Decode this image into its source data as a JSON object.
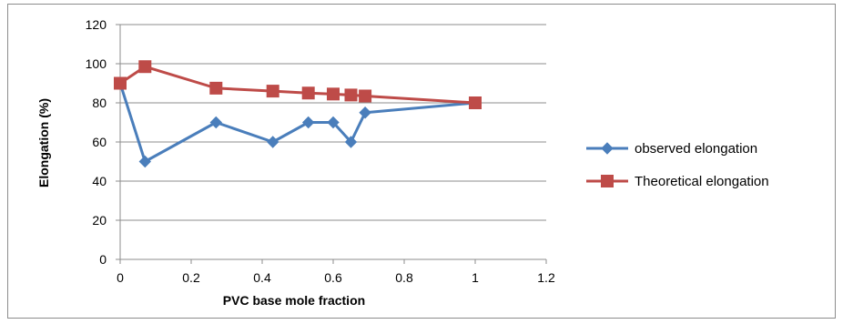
{
  "chart_data": {
    "type": "line",
    "xlabel": "PVC base mole fraction",
    "ylabel": "Elongation (%)",
    "xlim": [
      0,
      1.2
    ],
    "ylim": [
      0,
      120
    ],
    "xticks": [
      "0",
      "0.2",
      "0.4",
      "0.6",
      "0.8",
      "1",
      "1.2"
    ],
    "yticks": [
      "0",
      "20",
      "40",
      "60",
      "80",
      "100",
      "120"
    ],
    "grid": "horizontal",
    "legend_position": "right",
    "series": [
      {
        "name": "observed elongation",
        "color": "#4a7ebb",
        "marker": "diamond",
        "x": [
          0,
          0.07,
          0.27,
          0.43,
          0.53,
          0.6,
          0.65,
          0.69,
          1.0
        ],
        "y": [
          90,
          50,
          70,
          60,
          70,
          70,
          60,
          75,
          80
        ]
      },
      {
        "name": "Theoretical elongation",
        "color": "#be4b48",
        "marker": "square",
        "x": [
          0,
          0.07,
          0.27,
          0.43,
          0.53,
          0.6,
          0.65,
          0.69,
          1.0
        ],
        "y": [
          90,
          98.5,
          87.5,
          86,
          85,
          84.5,
          84,
          83.5,
          80
        ]
      }
    ]
  }
}
